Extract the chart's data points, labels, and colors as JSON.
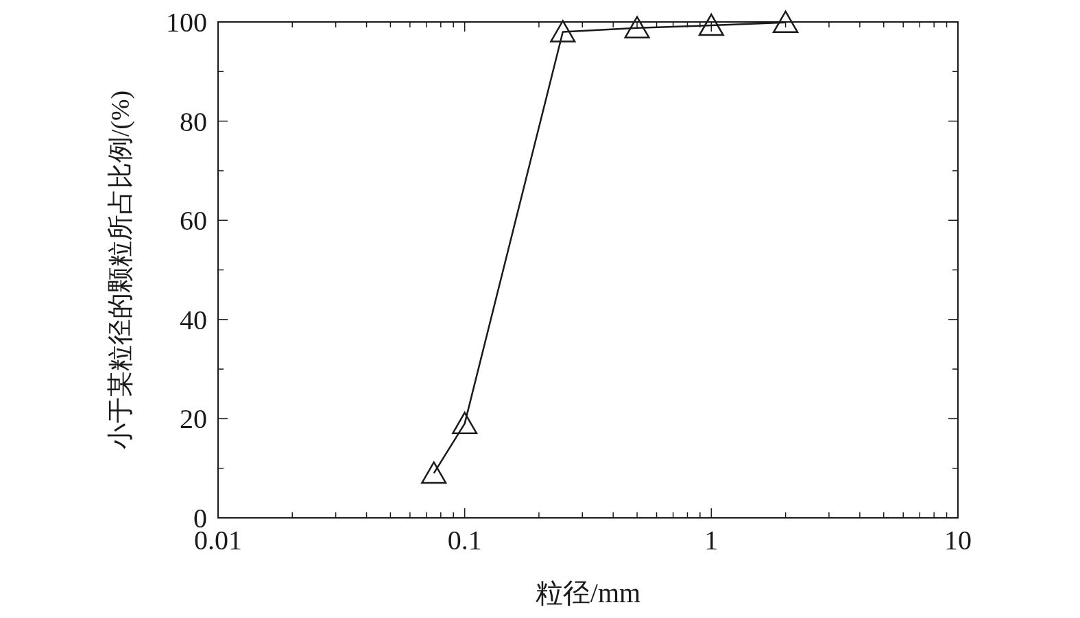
{
  "chart_data": {
    "type": "line",
    "xlabel": "粒径/mm",
    "ylabel": "小于某粒径的颗粒所占比例/(%)",
    "log": "x",
    "x": [
      0.075,
      0.1,
      0.25,
      0.5,
      1,
      2
    ],
    "series": [
      {
        "color": "#1a1a1a",
        "values": [
          9,
          19,
          98,
          98.8,
          99.3,
          99.9
        ]
      }
    ],
    "marker": "triangle",
    "line_style": "solid",
    "grid": false,
    "xlim": [
      0.01,
      10
    ],
    "xticks": [
      0.01,
      {
        "value": 0.02,
        "label": null
      },
      {
        "value": 0.03,
        "label": null
      },
      {
        "value": 0.04,
        "label": null
      },
      {
        "value": 0.05,
        "label": null
      },
      {
        "value": 0.06,
        "label": null
      },
      {
        "value": 0.07,
        "label": null
      },
      {
        "value": 0.08,
        "label": null
      },
      {
        "value": 0.09,
        "label": null
      },
      0.1,
      {
        "value": 0.2,
        "label": null
      },
      {
        "value": 0.3,
        "label": null
      },
      {
        "value": 0.4,
        "label": null
      },
      {
        "value": 0.5,
        "label": null
      },
      {
        "value": 0.6,
        "label": null
      },
      {
        "value": 0.7,
        "label": null
      },
      {
        "value": 0.8,
        "label": null
      },
      {
        "value": 0.9,
        "label": null
      },
      1,
      {
        "value": 2,
        "label": null
      },
      {
        "value": 3,
        "label": null
      },
      {
        "value": 4,
        "label": null
      },
      {
        "value": 5,
        "label": null
      },
      {
        "value": 6,
        "label": null
      },
      {
        "value": 7,
        "label": null
      },
      {
        "value": 8,
        "label": null
      },
      {
        "value": 9,
        "label": null
      },
      10
    ],
    "ylim": [
      0,
      100
    ],
    "yticks": [
      0,
      {
        "value": 10,
        "label": null
      },
      20,
      {
        "value": 30,
        "label": null
      },
      40,
      {
        "value": 50,
        "label": null
      },
      60,
      {
        "value": 70,
        "label": null
      },
      80,
      {
        "value": 90,
        "label": null
      },
      100
    ]
  }
}
